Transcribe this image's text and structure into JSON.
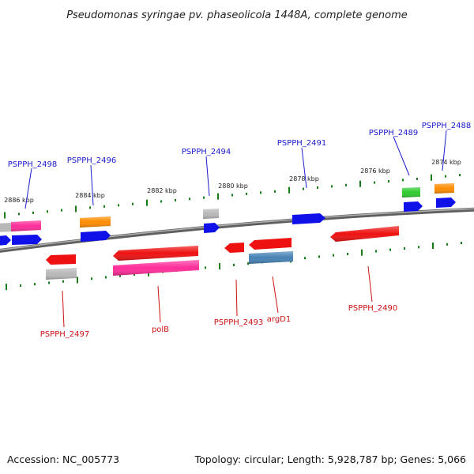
{
  "title": "Pseudomonas syringae pv. phaseolicola 1448A, complete genome",
  "footer": {
    "accession": "Accession: NC_005773",
    "topology": "Topology: circular; Length: 5,928,787 bp; Genes: 5,066"
  },
  "colors": {
    "backbone": "#7a7a7a",
    "tick": "#1a7a1a",
    "label_forward": "#1a1acc",
    "label_reverse": "#cc1111"
  },
  "scale": {
    "unit": "kbp",
    "ticks": [
      {
        "label": "2886 kbp"
      },
      {
        "label": "2884 kbp"
      },
      {
        "label": "2882 kbp"
      },
      {
        "label": "2880 kbp"
      },
      {
        "label": "2878 kbp"
      },
      {
        "label": "2876 kbp"
      },
      {
        "label": "2874 kbp"
      }
    ]
  },
  "genes": [
    {
      "name": "PSPPH_2498",
      "strand": "forward",
      "color": "#ff2d9a",
      "labeled": true
    },
    {
      "name": "PSPPH_2496",
      "strand": "forward",
      "color": "#ff8c00",
      "labeled": true
    },
    {
      "name": "PSPPH_2494",
      "strand": "forward",
      "color": "#b8b8b8",
      "labeled": true
    },
    {
      "name": "PSPPH_2491",
      "strand": "forward",
      "color": "#1010e8",
      "labeled": true
    },
    {
      "name": "PSPPH_2489",
      "strand": "forward",
      "color": "#2ecc2e",
      "labeled": true
    },
    {
      "name": "PSPPH_2488",
      "strand": "forward",
      "color": "#ff8c00",
      "labeled": true
    },
    {
      "name": "PSPPH_2497",
      "strand": "reverse",
      "color": "#ee1111",
      "labeled": true
    },
    {
      "name": "polB",
      "strand": "reverse",
      "color": "#ee1111",
      "labeled": true
    },
    {
      "name": "PSPPH_2493",
      "strand": "reverse",
      "color": "#ee1111",
      "labeled": true
    },
    {
      "name": "argD1",
      "strand": "reverse",
      "color": "#ee1111",
      "labeled": true
    },
    {
      "name": "PSPPH_2490",
      "strand": "reverse",
      "color": "#ee1111",
      "labeled": true
    }
  ],
  "features": [
    {
      "id": "f-2498-cds",
      "color": "#ff2d9a",
      "strand": "forward"
    },
    {
      "id": "f-2498-gene",
      "color": "#1010e8",
      "strand": "forward"
    },
    {
      "id": "f-left-gray",
      "color": "#b8b8b8",
      "strand": "forward"
    },
    {
      "id": "f-left-blue",
      "color": "#1010e8",
      "strand": "forward"
    },
    {
      "id": "f-2496-cds",
      "color": "#ff8c00",
      "strand": "forward"
    },
    {
      "id": "f-2496-gene",
      "color": "#1010e8",
      "strand": "forward"
    },
    {
      "id": "f-2494-cds",
      "color": "#b8b8b8",
      "strand": "forward"
    },
    {
      "id": "f-2494-gene",
      "color": "#1010e8",
      "strand": "forward"
    },
    {
      "id": "f-2491-gene",
      "color": "#1010e8",
      "strand": "forward"
    },
    {
      "id": "f-2489-cds",
      "color": "#2ecc2e",
      "strand": "forward"
    },
    {
      "id": "f-2489-gene",
      "color": "#1010e8",
      "strand": "forward"
    },
    {
      "id": "f-2488-cds",
      "color": "#ff8c00",
      "strand": "forward"
    },
    {
      "id": "f-2488-gene",
      "color": "#1010e8",
      "strand": "forward"
    },
    {
      "id": "f-2497-gene",
      "color": "#ee1111",
      "strand": "reverse"
    },
    {
      "id": "f-2497-cds",
      "color": "#b8b8b8",
      "strand": "reverse"
    },
    {
      "id": "f-polb-gene",
      "color": "#ee1111",
      "strand": "reverse"
    },
    {
      "id": "f-polb-cds",
      "color": "#ff2d9a",
      "strand": "reverse"
    },
    {
      "id": "f-2493-gene",
      "color": "#ee1111",
      "strand": "reverse"
    },
    {
      "id": "f-argd1-gene",
      "color": "#ee1111",
      "strand": "reverse"
    },
    {
      "id": "f-argd1-cds",
      "color": "#4682b4",
      "strand": "reverse"
    },
    {
      "id": "f-2490-gene",
      "color": "#ee1111",
      "strand": "reverse"
    }
  ]
}
